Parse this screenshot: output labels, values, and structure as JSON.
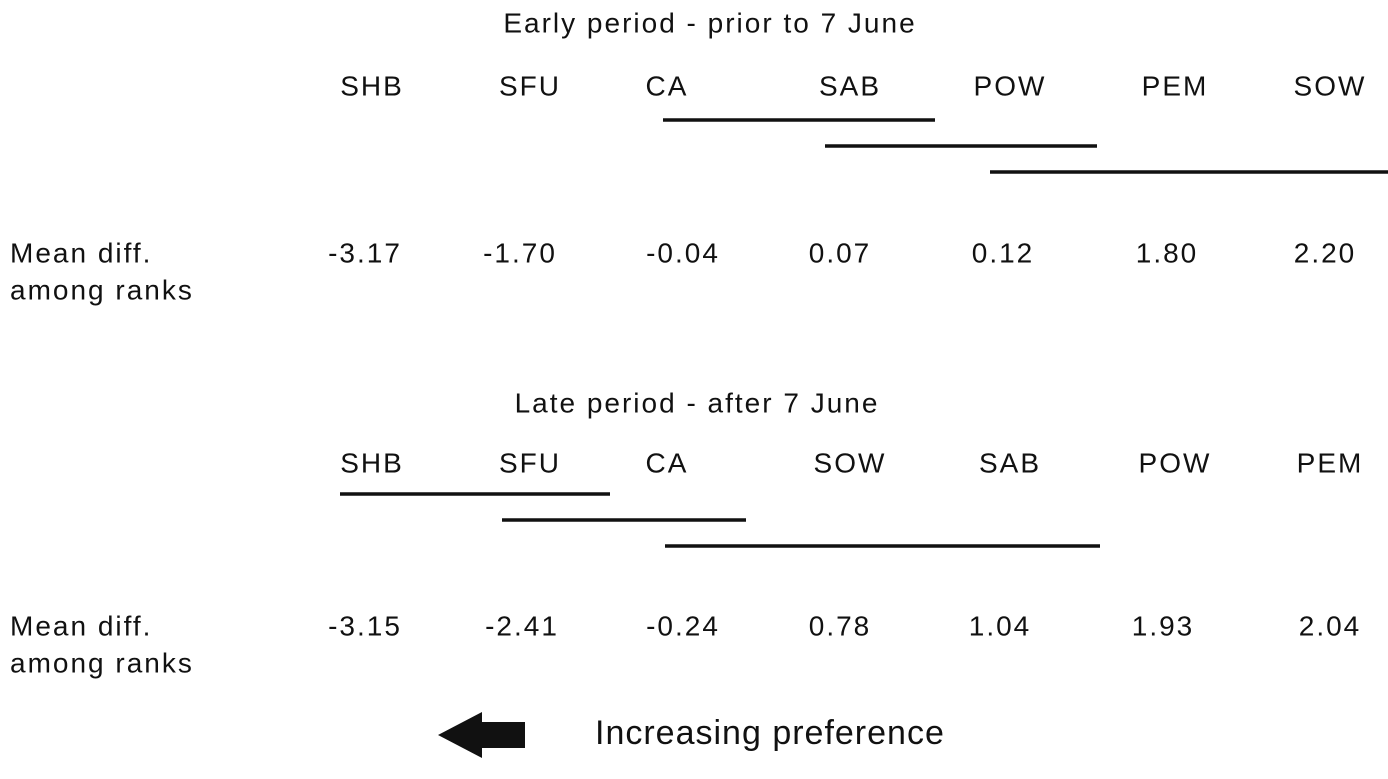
{
  "panels": [
    {
      "title": "Early period - prior to 7 June",
      "species": [
        "SHB",
        "SFU",
        "CA",
        "SAB",
        "POW",
        "PEM",
        "SOW"
      ],
      "row_label": [
        "Mean diff.",
        "among ranks"
      ],
      "values": [
        "-3.17",
        "-1.70",
        "-0.04",
        "0.07",
        "0.12",
        "1.80",
        "2.20"
      ]
    },
    {
      "title": "Late period - after 7 June",
      "species": [
        "SHB",
        "SFU",
        "CA",
        "SOW",
        "SAB",
        "POW",
        "PEM"
      ],
      "row_label": [
        "Mean diff.",
        "among ranks"
      ],
      "values": [
        "-3.15",
        "-2.41",
        "-0.24",
        "0.78",
        "1.04",
        "1.93",
        "2.04"
      ]
    }
  ],
  "legend": "Increasing preference"
}
